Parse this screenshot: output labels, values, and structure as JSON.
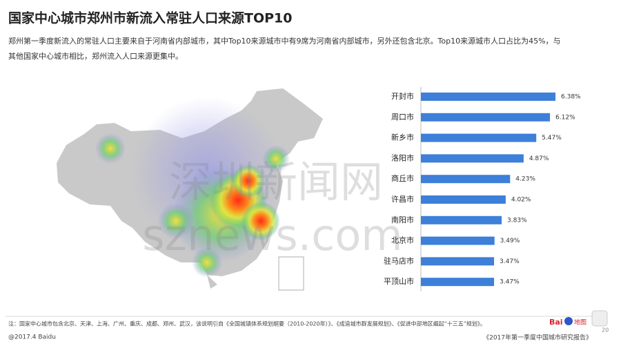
{
  "header": {
    "title": "国家中心城市郑州市新流入常驻人口来源TOP10",
    "subtitle": [
      "郑州第一季度新流入的常驻人口主要来自于河南省内部城市，其中Top10来源城市中有9席为河南省内部城市，另外还包含北京。Top10来源城市人口占比为45%，与",
      "其他国家中心城市相比，郑州流入人口来源更集中。"
    ]
  },
  "watermark": [
    "深圳新闻网",
    "sznews.com"
  ],
  "chart_data": {
    "type": "bar",
    "orientation": "horizontal",
    "color": "#3d7fd9",
    "categories": [
      "开封市",
      "周口市",
      "新乡市",
      "洛阳市",
      "商丘市",
      "许昌市",
      "南阳市",
      "北京市",
      "驻马店市",
      "平顶山市"
    ],
    "values": [
      6.38,
      6.12,
      5.47,
      4.87,
      4.23,
      4.02,
      3.83,
      3.49,
      3.47,
      3.47
    ],
    "value_labels": [
      "6.38%",
      "6.12%",
      "5.47%",
      "4.87%",
      "4.23%",
      "4.02%",
      "3.83%",
      "3.49%",
      "3.47%",
      "3.47%"
    ]
  },
  "footer": {
    "note": "注：国家中心城市包含北京、天津、上海、广州、重庆、成都、郑州、武汉，该说明引自《全国城镇体系规划纲要（2010-2020年）》、《成渝城市群发展规划》、《促进中部地区崛起“十三五”规划》。",
    "copyright": "@2017.4 Baidu",
    "logo": [
      "Bai",
      "地图"
    ],
    "source": "《2017年第一季度中国城市研究报告》",
    "page": "20"
  }
}
